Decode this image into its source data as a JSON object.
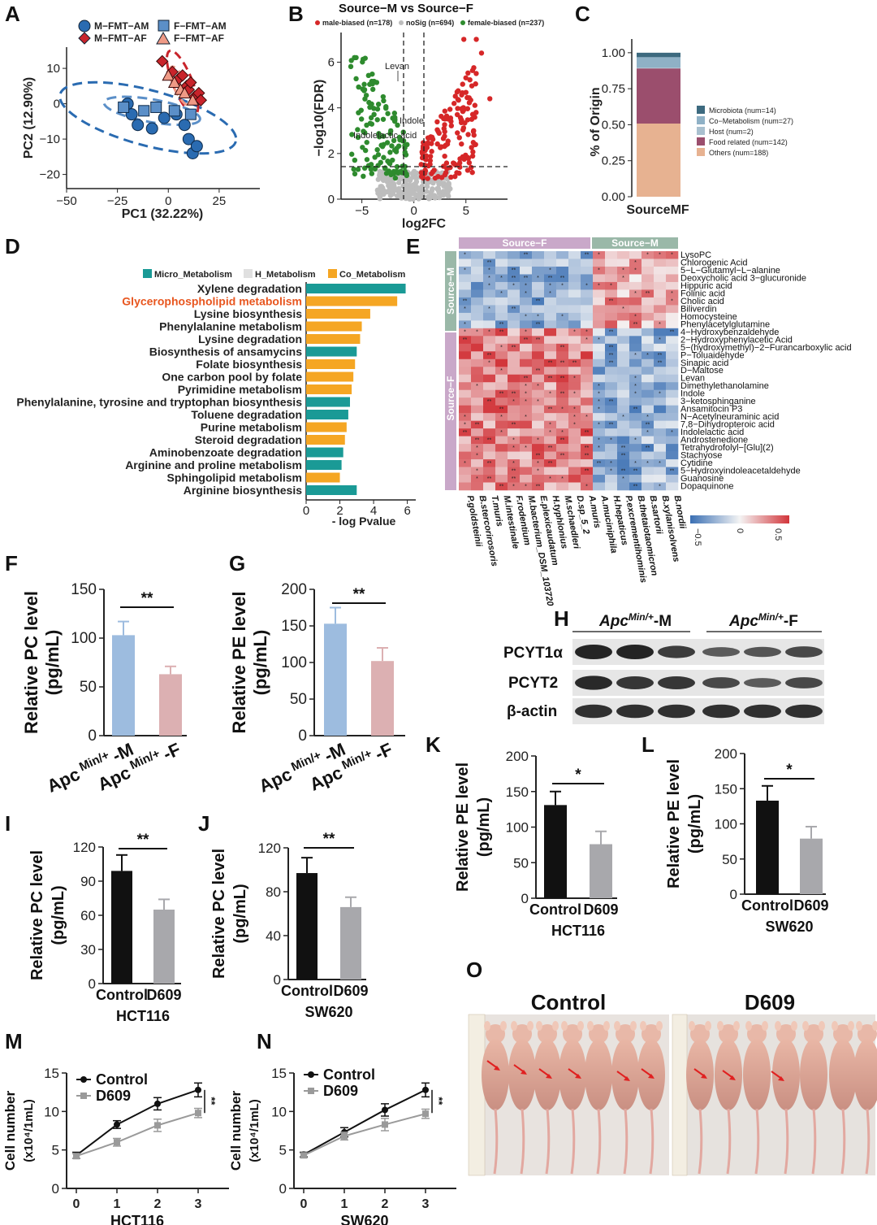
{
  "panels": [
    "A",
    "B",
    "C",
    "D",
    "E",
    "F",
    "G",
    "H",
    "I",
    "J",
    "K",
    "L",
    "M",
    "N",
    "O"
  ],
  "colors": {
    "male": "#d62728",
    "female": "#2e8b2e",
    "nosig": "#bdbdbd",
    "fmt_blue": "#2a6bb1",
    "fmt_red": "#c8242b",
    "micro": "#1a9a96",
    "co": "#f5a623",
    "highlight": "#e8561f",
    "bar_blue": "#9dbcdf",
    "bar_pink": "#dcb0b2",
    "black": "#111111",
    "gray": "#a8a8ac"
  },
  "chart_data": [
    {
      "id": "A",
      "type": "scatter",
      "xlabel": "PC1 (32.22%)",
      "ylabel": "PC2 (12.90%)",
      "xlim": [
        -50,
        45
      ],
      "ylim": [
        -24,
        16
      ],
      "xticks": [
        "−50",
        "−25",
        "0",
        "25"
      ],
      "yticks": [
        "10",
        "0",
        "−10",
        "−20"
      ],
      "legend": [
        "M−FMT−AM",
        "F−FMT−AM",
        "M−FMT−AF",
        "F−FMT−AF"
      ],
      "series": [
        {
          "name": "M−FMT−AM",
          "marker": "circle",
          "color": "#2a6bb1",
          "points": [
            [
              -20,
              0
            ],
            [
              -18,
              -3
            ],
            [
              -15,
              -6
            ],
            [
              -8,
              -7
            ],
            [
              -2,
              -4
            ],
            [
              4,
              -3
            ],
            [
              8,
              -6
            ],
            [
              10,
              -10
            ],
            [
              12,
              -14
            ],
            [
              14,
              -12
            ]
          ]
        },
        {
          "name": "F−FMT−AM",
          "marker": "square",
          "color": "#5b8fc8",
          "points": [
            [
              -22,
              -1
            ],
            [
              -12,
              -2
            ],
            [
              -6,
              -1
            ],
            [
              3,
              -2
            ],
            [
              11,
              -3
            ]
          ]
        },
        {
          "name": "M−FMT−AF",
          "marker": "diamond",
          "color": "#c8242b",
          "points": [
            [
              -3,
              12
            ],
            [
              2,
              9
            ],
            [
              5,
              7
            ],
            [
              7,
              8
            ],
            [
              9,
              5
            ],
            [
              10,
              4
            ],
            [
              11,
              6
            ],
            [
              13,
              2
            ],
            [
              15,
              3
            ],
            [
              16,
              1
            ]
          ]
        },
        {
          "name": "F−FMT−AF",
          "marker": "triangle",
          "color": "#ef9a86",
          "points": [
            [
              0,
              8
            ],
            [
              3,
              6
            ],
            [
              6,
              4
            ],
            [
              8,
              3
            ],
            [
              12,
              1
            ]
          ]
        }
      ]
    },
    {
      "id": "B",
      "type": "scatter",
      "title": "Source−M vs Source−F",
      "legend": [
        "male-biased (n=178)",
        "noSig (n=694)",
        "female-biased (n=237)"
      ],
      "xlabel": "log2FC",
      "ylabel": "−log10(FDR)",
      "xlim": [
        -7,
        9
      ],
      "ylim": [
        0,
        7.3
      ],
      "xticks": [
        "−5",
        "0",
        "5"
      ],
      "yticks": [
        "0",
        "2",
        "4",
        "6"
      ],
      "annotations": [
        "Levan",
        "Indole",
        "Indolelactic acid"
      ]
    },
    {
      "id": "C",
      "type": "bar",
      "stacked": true,
      "ylabel": "% of Origin",
      "xlabel": "SourceMF",
      "ylim": [
        0,
        1.05
      ],
      "yticks": [
        "0.00",
        "0.25",
        "0.50",
        "0.75",
        "1.00"
      ],
      "segments": [
        {
          "name": "Others (num=188)",
          "value": 0.508,
          "color": "#e7b291"
        },
        {
          "name": "Food related (num=142)",
          "value": 0.383,
          "color": "#9b4e6d"
        },
        {
          "name": "Host (num=2)",
          "value": 0.005,
          "color": "#a9c0cf"
        },
        {
          "name": "Co−Metabolism (num=27)",
          "value": 0.073,
          "color": "#8fb1c6"
        },
        {
          "name": "Microbiota (num=14)",
          "value": 0.031,
          "color": "#3d6a7f"
        }
      ],
      "legend_order": [
        "Microbiota (num=14)",
        "Co−Metabolism (num=27)",
        "Host (num=2)",
        "Food related (num=142)",
        "Others (num=188)"
      ]
    },
    {
      "id": "D",
      "type": "bar",
      "orientation": "horizontal",
      "xlabel": "- log Pvalue",
      "xlim": [
        0,
        6.5
      ],
      "xticks": [
        "0",
        "2",
        "4",
        "6"
      ],
      "legend": [
        "Micro_Metabolism",
        "H_Metabolism",
        "Co_Metabolism"
      ],
      "categories": [
        "Xylene degradation",
        "Glycerophospholipid metabolism",
        "Lysine biosynthesis",
        "Phenylalanine metabolism",
        "Lysine degradation",
        "Biosynthesis of ansamycins",
        "Folate biosynthesis",
        "One carbon pool by folate",
        "Pyrimidine metabolism",
        "Phenylalanine, tyrosine and tryptophan biosynthesis",
        "Toluene degradation",
        "Purine metabolism",
        "Steroid degradation",
        "Aminobenzoate degradation",
        "Arginine and proline metabolism",
        "Sphingolipid metabolism",
        "Arginine biosynthesis"
      ],
      "values": [
        5.9,
        5.4,
        3.8,
        3.3,
        3.2,
        3.0,
        2.9,
        2.8,
        2.7,
        2.6,
        2.5,
        2.4,
        2.3,
        2.2,
        2.1,
        2.0,
        3.0
      ],
      "classes": [
        "Micro",
        "Co",
        "Co",
        "Co",
        "Co",
        "Micro",
        "Co",
        "Co",
        "Co",
        "Micro",
        "Micro",
        "Co",
        "Co",
        "Micro",
        "Micro",
        "Co",
        "Micro"
      ]
    },
    {
      "id": "E",
      "type": "heatmap",
      "col_groups": [
        "Source−F",
        "Source−M"
      ],
      "row_groups": [
        "Source−M",
        "Source−F"
      ],
      "rows": [
        "LysoPC",
        "Chlorogenic Acid",
        "5−L−Glutamyl−L−alanine",
        "Deoxycholic acid 3−glucuronide",
        "Hippuric acid",
        "Folinic acid",
        "Cholic acid",
        "Biliverdin",
        "Homocysteine",
        "Phenylacetylglutamine",
        "4−Hydroxybenzaldehyde",
        "2−Hydroxyphenylacetic Acid",
        "5−(hydroxymethyl)−2−Furancarboxylic acid",
        "P−Toluaidehyde",
        "Sinapic acid",
        "D−Maltose",
        "Levan",
        "Dimethylethanolamine",
        "Indole",
        "3−ketosphinganine",
        "Ansamitocin P3",
        "N−Acetylneuraminic acid",
        "7,8−Dihydropteroic acid",
        "Indolelactic acid",
        "Androstenedione",
        "Tetrahydrofolyl−[Glu](2)",
        "Stachyose",
        "Cytidine",
        "5−Hydroxyindoleacetaldehyde",
        "Guanosine",
        "Dopaquinone"
      ],
      "cols": [
        "P.goldsteinii",
        "B.stercorirosoris",
        "T.muris",
        "M.intestinale",
        "F.rodentium",
        "M.bacterium_DSM_103720",
        "E.plexicaudatum",
        "H.typhlonius",
        "M.schaedleri",
        "D.sp_5_2",
        "A.muris",
        "A.muciniphila",
        "H.hepaticus",
        "P.excrementihominis",
        "B.thetaiotaomicron",
        "B.sartorii",
        "B.xylanisolvens",
        "B.nordii"
      ],
      "scale": [
        "−0.5",
        "0",
        "0.5"
      ]
    },
    {
      "id": "F",
      "type": "bar",
      "ylabel": "Relative PC level (pg/mL)",
      "ylim": [
        0,
        150
      ],
      "yticks": [
        "0",
        "50",
        "100",
        "150"
      ],
      "categories": [
        "-M",
        "-F"
      ],
      "values": [
        103,
        63
      ],
      "errors": [
        14,
        8
      ],
      "sig": "**"
    },
    {
      "id": "G",
      "type": "bar",
      "ylabel": "Relative PE level (pg/mL)",
      "ylim": [
        0,
        200
      ],
      "yticks": [
        "0",
        "50",
        "100",
        "150",
        "200"
      ],
      "categories": [
        "-M",
        "-F"
      ],
      "values": [
        153,
        102
      ],
      "errors": [
        22,
        18
      ],
      "sig": "**"
    },
    {
      "id": "I",
      "type": "bar",
      "ylabel": "Relative PC level (pg/mL)",
      "ylim": [
        0,
        120
      ],
      "cell_line": "HCT116",
      "yticks": [
        "0",
        "30",
        "60",
        "90",
        "120"
      ],
      "categories": [
        "Control",
        "D609"
      ],
      "values": [
        99,
        65
      ],
      "errors": [
        14,
        9
      ],
      "sig": "**"
    },
    {
      "id": "J",
      "type": "bar",
      "ylabel": "Relative PC level (pg/mL)",
      "ylim": [
        0,
        120
      ],
      "cell_line": "SW620",
      "yticks": [
        "0",
        "40",
        "80",
        "120"
      ],
      "categories": [
        "Control",
        "D609"
      ],
      "values": [
        97,
        66
      ],
      "errors": [
        14,
        9
      ],
      "sig": "**"
    },
    {
      "id": "K",
      "type": "bar",
      "ylabel": "Relative PE level (pg/mL)",
      "ylim": [
        0,
        200
      ],
      "cell_line": "HCT116",
      "yticks": [
        "0",
        "50",
        "100",
        "150",
        "200"
      ],
      "categories": [
        "Control",
        "D609"
      ],
      "values": [
        131,
        76
      ],
      "errors": [
        19,
        18
      ],
      "sig": "*"
    },
    {
      "id": "L",
      "type": "bar",
      "ylabel": "Relative PE level (pg/mL)",
      "ylim": [
        0,
        200
      ],
      "cell_line": "SW620",
      "yticks": [
        "0",
        "50",
        "100",
        "150",
        "200"
      ],
      "categories": [
        "Control",
        "D609"
      ],
      "values": [
        133,
        79
      ],
      "errors": [
        21,
        17
      ],
      "sig": "*"
    },
    {
      "id": "M",
      "type": "line",
      "ylabel": "Cell number (x10⁴/1mL)",
      "xlabel": "HCT116",
      "x": [
        0,
        1,
        2,
        3
      ],
      "xticks": [
        "0",
        "1",
        "2",
        "3"
      ],
      "ylim": [
        0,
        15
      ],
      "yticks": [
        "0",
        "5",
        "10",
        "15"
      ],
      "sig": "**",
      "series": [
        {
          "name": "Control",
          "values": [
            4.3,
            8.3,
            11.0,
            12.8
          ],
          "errors": [
            0.4,
            0.5,
            0.8,
            0.9
          ]
        },
        {
          "name": "D609",
          "values": [
            4.2,
            6.0,
            8.2,
            9.8
          ],
          "errors": [
            0.3,
            0.5,
            0.8,
            0.6
          ]
        }
      ]
    },
    {
      "id": "N",
      "type": "line",
      "ylabel": "Cell number (x10⁴/1mL)",
      "xlabel": "SW620",
      "x": [
        0,
        1,
        2,
        3
      ],
      "xticks": [
        "0",
        "1",
        "2",
        "3"
      ],
      "ylim": [
        0,
        15
      ],
      "yticks": [
        "0",
        "5",
        "10",
        "15"
      ],
      "sig": "**",
      "series": [
        {
          "name": "Control",
          "values": [
            4.4,
            7.3,
            10.2,
            12.8
          ],
          "errors": [
            0.3,
            0.6,
            0.8,
            0.9
          ]
        },
        {
          "name": "D609",
          "values": [
            4.3,
            6.8,
            8.3,
            9.7
          ],
          "errors": [
            0.3,
            0.5,
            0.8,
            0.6
          ]
        }
      ]
    }
  ],
  "western": {
    "groups": [
      "M",
      "F"
    ],
    "rows": [
      "PCYT1α",
      "PCYT2",
      "β-actin"
    ]
  },
  "photo": {
    "groups": [
      "Control",
      "D609"
    ]
  },
  "axis_prefix": "Apc"
}
